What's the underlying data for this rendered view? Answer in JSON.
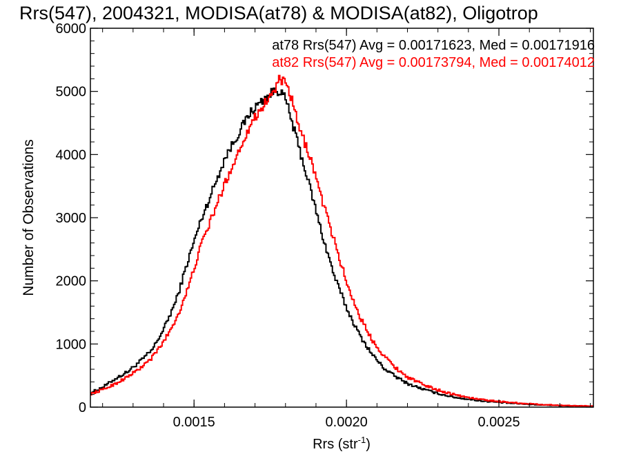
{
  "chart_data": {
    "type": "line",
    "step": true,
    "title": "Rrs(547), 2004321, MODISA(at78) & MODISA(at82), Oligotrop",
    "xlabel": "Rrs (str",
    "xlabel_sup": "-1",
    "xlabel_close": ")",
    "ylabel": "Number of Observations",
    "xlim": [
      0.00116,
      0.00281
    ],
    "ylim": [
      0,
      6000
    ],
    "x_ticks": [
      0.0015,
      0.002,
      0.0025
    ],
    "x_tick_labels": [
      "0.0015",
      "0.0020",
      "0.0025"
    ],
    "y_ticks": [
      0,
      1000,
      2000,
      3000,
      4000,
      5000,
      6000
    ],
    "y_tick_labels": [
      "0",
      "1000",
      "2000",
      "3000",
      "4000",
      "5000",
      "6000"
    ],
    "grid": false,
    "legend_position": "top-right",
    "annotations": [
      {
        "text": "at78 Rrs(547) Avg = 0.00171623, Med = 0.00171916",
        "color": "#000000"
      },
      {
        "text": "at82 Rrs(547) Avg = 0.00173794, Med = 0.00174012",
        "color": "#ff0000"
      }
    ],
    "series": [
      {
        "name": "at78",
        "color": "#000000",
        "x": [
          0.00116,
          0.0012,
          0.00124,
          0.00128,
          0.00132,
          0.00136,
          0.0014,
          0.00144,
          0.00148,
          0.00152,
          0.00156,
          0.0016,
          0.00164,
          0.00168,
          0.00172,
          0.00176,
          0.00178,
          0.0018,
          0.00182,
          0.00184,
          0.00188,
          0.00192,
          0.00196,
          0.002,
          0.00204,
          0.00208,
          0.00212,
          0.00216,
          0.0022,
          0.00224,
          0.00228,
          0.00232,
          0.00236,
          0.0024,
          0.00244,
          0.0025,
          0.00256,
          0.00262,
          0.0027,
          0.00281
        ],
        "values": [
          230,
          320,
          450,
          560,
          720,
          900,
          1250,
          1700,
          2350,
          2950,
          3450,
          3950,
          4300,
          4650,
          4850,
          5000,
          5020,
          4850,
          4500,
          4150,
          3450,
          2700,
          2050,
          1550,
          1150,
          850,
          620,
          480,
          370,
          300,
          240,
          190,
          150,
          125,
          100,
          75,
          55,
          40,
          25,
          12
        ]
      },
      {
        "name": "at82",
        "color": "#ff0000",
        "x": [
          0.00116,
          0.0012,
          0.00124,
          0.00128,
          0.00132,
          0.00136,
          0.0014,
          0.00144,
          0.00148,
          0.00152,
          0.00156,
          0.0016,
          0.00164,
          0.00168,
          0.00172,
          0.00176,
          0.00178,
          0.0018,
          0.00182,
          0.00184,
          0.00188,
          0.00192,
          0.00196,
          0.002,
          0.00204,
          0.00208,
          0.00212,
          0.00216,
          0.0022,
          0.00224,
          0.00228,
          0.00232,
          0.00236,
          0.0024,
          0.00244,
          0.0025,
          0.00256,
          0.00262,
          0.0027,
          0.00281
        ],
        "values": [
          210,
          280,
          370,
          480,
          610,
          780,
          1050,
          1400,
          1900,
          2550,
          3050,
          3550,
          4000,
          4450,
          4750,
          5000,
          5200,
          5100,
          4850,
          4450,
          3950,
          3250,
          2600,
          1950,
          1450,
          1080,
          820,
          620,
          470,
          380,
          300,
          240,
          190,
          150,
          120,
          90,
          65,
          45,
          28,
          15
        ]
      }
    ]
  }
}
